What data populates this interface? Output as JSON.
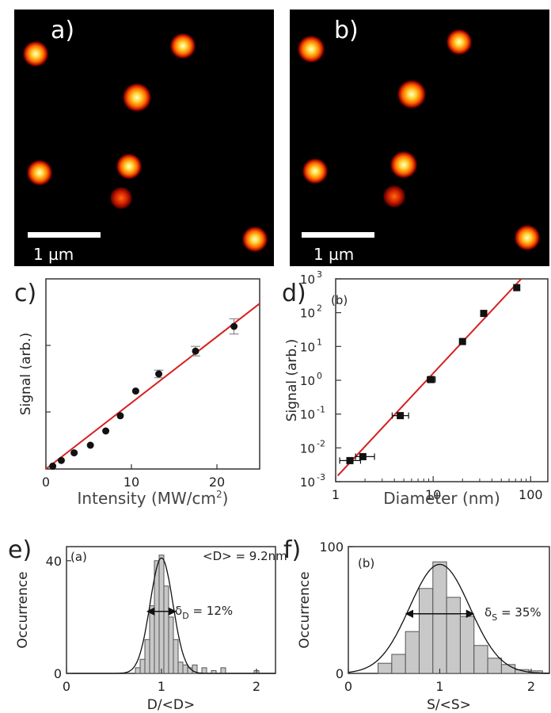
{
  "colors": {
    "fit_line": "#d62020",
    "marker": "#111111",
    "bar_fill": "#c8c8c8",
    "bar_stroke": "#555555",
    "image_bg": "#000000",
    "spot_core": "#ffffc8",
    "spot_mid": "#ff9900",
    "spot_edge": "#a00000"
  },
  "panels": {
    "a": {
      "label": "a)",
      "scalebar_label": "1 µm"
    },
    "b": {
      "label": "b)",
      "scalebar_label": "1 µm"
    },
    "c": {
      "label": "c)"
    },
    "d": {
      "label": "d)",
      "inset_label": "(b)"
    },
    "e": {
      "label": "e)",
      "inset_label": "(a)",
      "mean_text": "<D> = 9.2nm",
      "width_symbol": "δ",
      "width_sub": "D",
      "width_value": " = 12%"
    },
    "f": {
      "label": "f)",
      "inset_label": "(b)",
      "width_symbol": "δ",
      "width_sub": "S",
      "width_value": " = 35%"
    }
  },
  "chart_data": [
    {
      "panel": "a",
      "type": "image",
      "description_of_content": "bright nanoparticle spots",
      "scale_bar": "1 µm"
    },
    {
      "panel": "b",
      "type": "image",
      "description_of_content": "bright nanoparticle spots",
      "scale_bar": "1 µm"
    },
    {
      "panel": "c",
      "type": "scatter",
      "xlabel": "Intensity (MW/cm",
      "xlabel_sup": "2",
      "xlabel_end": ")",
      "ylabel": "Signal (arb.)",
      "xlim": [
        0,
        25
      ],
      "ylim": [
        0,
        100
      ],
      "xticks": [
        0,
        10,
        20
      ],
      "yticks_unlabeled": [
        30,
        65
      ],
      "points": [
        {
          "x": 0.8,
          "y": 1.5,
          "err": 0
        },
        {
          "x": 1.8,
          "y": 4.5,
          "err": 0
        },
        {
          "x": 3.3,
          "y": 8.5,
          "err": 0
        },
        {
          "x": 5.2,
          "y": 12.5,
          "err": 0
        },
        {
          "x": 7.0,
          "y": 20.0,
          "err": 0
        },
        {
          "x": 8.7,
          "y": 28.0,
          "err": 0
        },
        {
          "x": 10.5,
          "y": 41.0,
          "err": 0
        },
        {
          "x": 13.2,
          "y": 50.0,
          "err": 2
        },
        {
          "x": 17.5,
          "y": 62.0,
          "err": 2.5
        },
        {
          "x": 22.0,
          "y": 75.0,
          "err": 4
        }
      ],
      "fit_line": [
        [
          0,
          0
        ],
        [
          25,
          87
        ]
      ]
    },
    {
      "panel": "d",
      "type": "scatter",
      "xscale": "log",
      "yscale": "log",
      "xlabel": "Diameter (nm)",
      "ylabel": "Signal (arb.)",
      "xlim": [
        1,
        150
      ],
      "ylim": [
        0.001,
        1000
      ],
      "xticks": [
        1,
        10,
        100
      ],
      "xtick_labels": [
        "1",
        "10",
        "100"
      ],
      "yticks": [
        0.001,
        0.01,
        0.1,
        1,
        10,
        100,
        1000
      ],
      "ytick_mantissa": [
        "10",
        "10",
        "10",
        "10",
        "10",
        "10",
        "10"
      ],
      "ytick_exponents": [
        "-3",
        "-2",
        "-1",
        "0",
        "1",
        "2",
        "3"
      ],
      "points": [
        {
          "x": 1.4,
          "y": 0.0042,
          "xerr": [
            1.1,
            1.8
          ]
        },
        {
          "x": 1.9,
          "y": 0.0055,
          "xerr": [
            1.6,
            2.5
          ]
        },
        {
          "x": 4.6,
          "y": 0.09,
          "xerr": [
            3.8,
            5.6
          ]
        },
        {
          "x": 9.5,
          "y": 1.05,
          "xerr": [
            8.7,
            10.5
          ]
        },
        {
          "x": 20,
          "y": 14,
          "xerr": [
            19,
            21
          ]
        },
        {
          "x": 33,
          "y": 95,
          "xerr": [
            31,
            35
          ]
        },
        {
          "x": 72,
          "y": 550,
          "xerr": [
            70,
            74
          ]
        }
      ],
      "fit_line": [
        [
          1.05,
          0.0015
        ],
        [
          80,
          1000
        ]
      ]
    },
    {
      "panel": "e",
      "type": "bar",
      "xlabel": "D/<D>",
      "ylabel": "Occurrence",
      "xlim": [
        0,
        2.2
      ],
      "ylim": [
        0,
        45
      ],
      "xticks": [
        0,
        1,
        2
      ],
      "yticks": [
        0,
        40
      ],
      "bin_width": 0.05,
      "bins": [
        {
          "x": 0.75,
          "h": 2
        },
        {
          "x": 0.8,
          "h": 5
        },
        {
          "x": 0.85,
          "h": 12
        },
        {
          "x": 0.9,
          "h": 24
        },
        {
          "x": 0.95,
          "h": 40
        },
        {
          "x": 1.0,
          "h": 42
        },
        {
          "x": 1.05,
          "h": 31
        },
        {
          "x": 1.1,
          "h": 20
        },
        {
          "x": 1.15,
          "h": 12
        },
        {
          "x": 1.2,
          "h": 4
        },
        {
          "x": 1.25,
          "h": 3
        },
        {
          "x": 1.3,
          "h": 2
        },
        {
          "x": 1.35,
          "h": 3
        },
        {
          "x": 1.45,
          "h": 2
        },
        {
          "x": 1.55,
          "h": 1
        },
        {
          "x": 1.65,
          "h": 2
        },
        {
          "x": 2.0,
          "h": 1
        }
      ],
      "gaussian": {
        "amplitude": 41,
        "mean": 1.0,
        "sigma": 0.12
      },
      "arrow": [
        0.85,
        1.15
      ],
      "arrow_y": 22
    },
    {
      "panel": "f",
      "type": "bar",
      "xlabel": "S/<S>",
      "ylabel": "Occurrence",
      "xlim": [
        0,
        2.2
      ],
      "ylim": [
        0,
        100
      ],
      "xticks": [
        0,
        1,
        2
      ],
      "yticks": [
        0,
        100
      ],
      "bin_width": 0.15,
      "bins": [
        {
          "x": 0.4,
          "h": 8
        },
        {
          "x": 0.55,
          "h": 15
        },
        {
          "x": 0.7,
          "h": 33
        },
        {
          "x": 0.85,
          "h": 67
        },
        {
          "x": 1.0,
          "h": 88
        },
        {
          "x": 1.15,
          "h": 60
        },
        {
          "x": 1.3,
          "h": 45
        },
        {
          "x": 1.45,
          "h": 22
        },
        {
          "x": 1.6,
          "h": 12
        },
        {
          "x": 1.75,
          "h": 7
        },
        {
          "x": 1.9,
          "h": 3
        },
        {
          "x": 2.05,
          "h": 2
        }
      ],
      "gaussian": {
        "amplitude": 86,
        "mean": 1.0,
        "sigma": 0.33
      },
      "arrow": [
        0.63,
        1.37
      ],
      "arrow_y": 47
    }
  ]
}
